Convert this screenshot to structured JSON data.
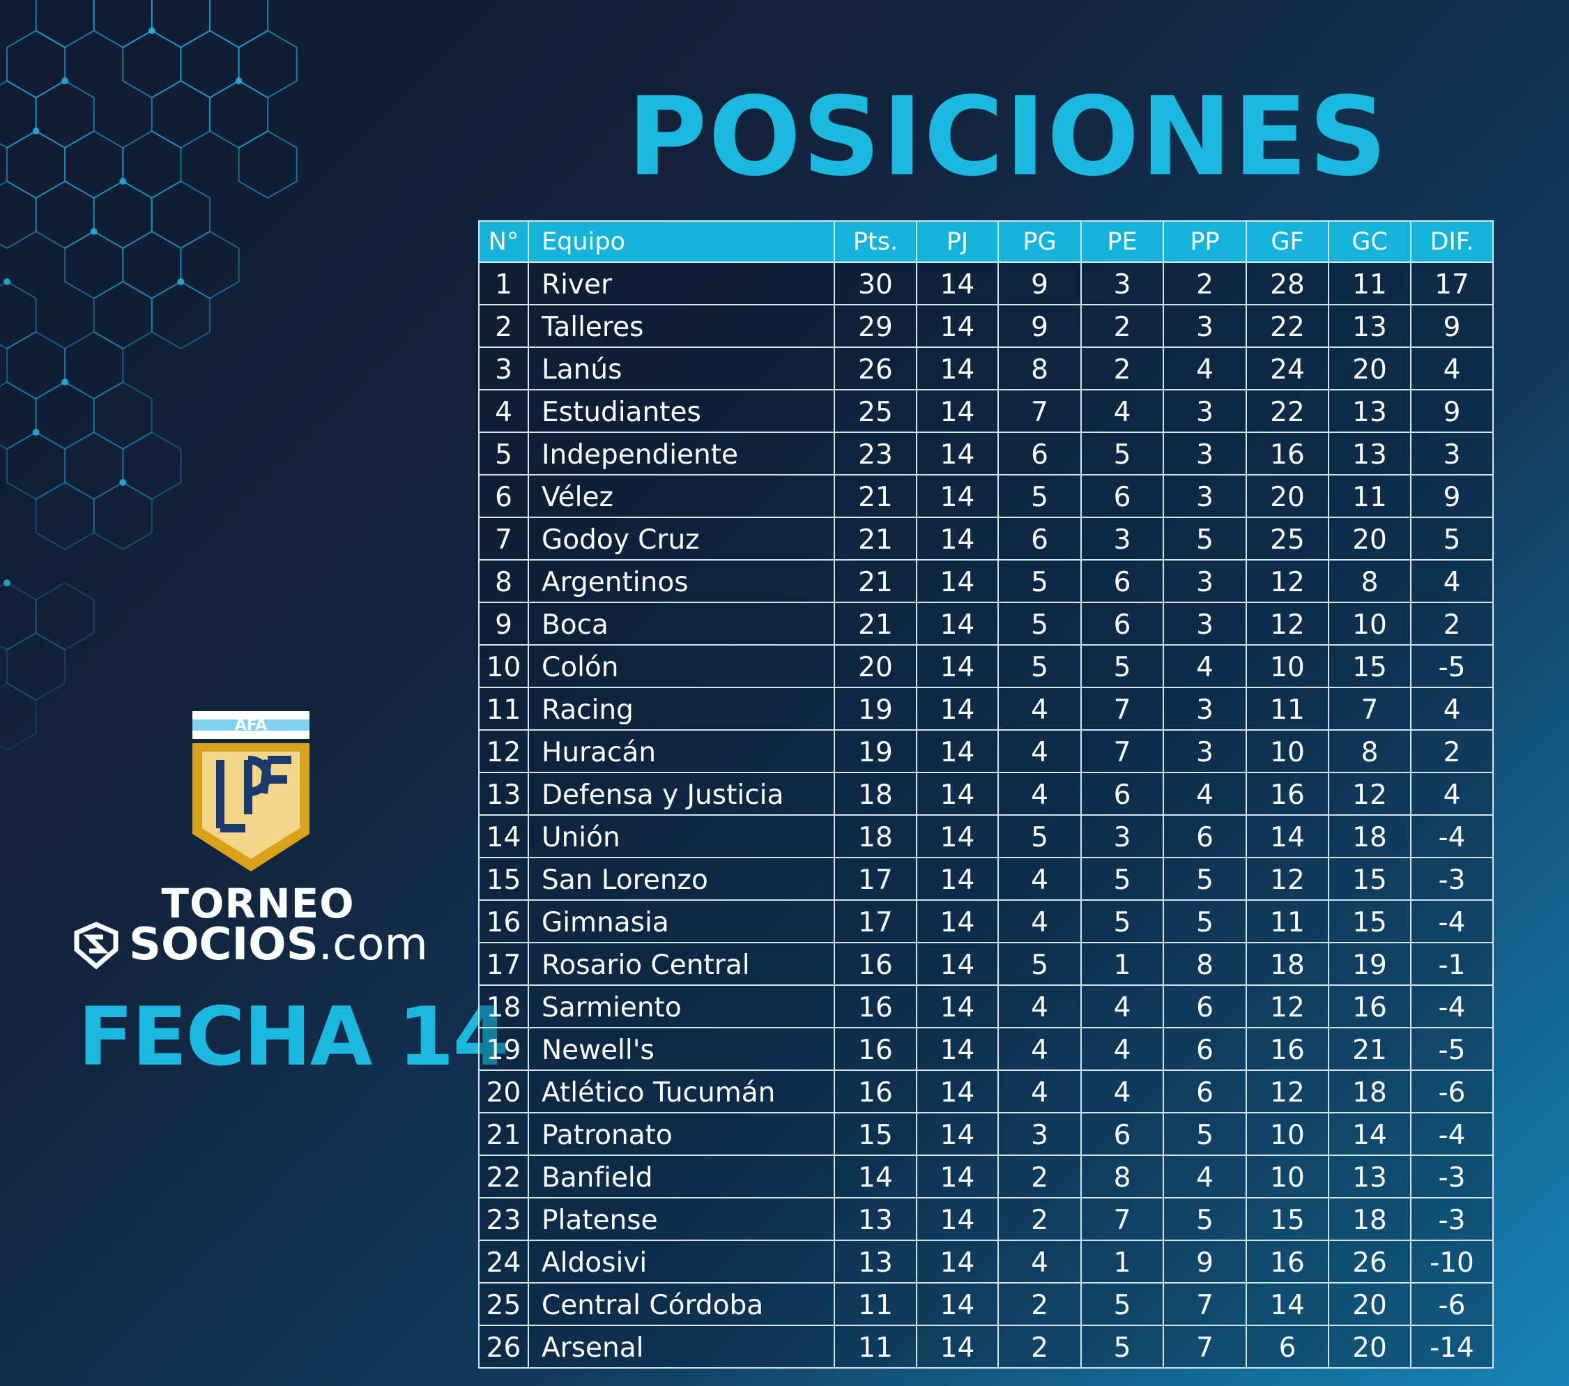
{
  "header": {
    "title": "POSICIONES"
  },
  "branding": {
    "logo_badge": "AFA",
    "tournament": "TORNEO",
    "sponsor_bold": "SOCIOS",
    "sponsor_light": ".com",
    "round": "FECHA 14"
  },
  "table": {
    "headers": [
      "N°",
      "Equipo",
      "Pts.",
      "PJ",
      "PG",
      "PE",
      "PP",
      "GF",
      "GC",
      "DIF."
    ],
    "rows": [
      [
        1,
        "River",
        30,
        14,
        9,
        3,
        2,
        28,
        11,
        17
      ],
      [
        2,
        "Talleres",
        29,
        14,
        9,
        2,
        3,
        22,
        13,
        9
      ],
      [
        3,
        "Lanús",
        26,
        14,
        8,
        2,
        4,
        24,
        20,
        4
      ],
      [
        4,
        "Estudiantes",
        25,
        14,
        7,
        4,
        3,
        22,
        13,
        9
      ],
      [
        5,
        "Independiente",
        23,
        14,
        6,
        5,
        3,
        16,
        13,
        3
      ],
      [
        6,
        "Vélez",
        21,
        14,
        5,
        6,
        3,
        20,
        11,
        9
      ],
      [
        7,
        "Godoy Cruz",
        21,
        14,
        6,
        3,
        5,
        25,
        20,
        5
      ],
      [
        8,
        "Argentinos",
        21,
        14,
        5,
        6,
        3,
        12,
        8,
        4
      ],
      [
        9,
        "Boca",
        21,
        14,
        5,
        6,
        3,
        12,
        10,
        2
      ],
      [
        10,
        "Colón",
        20,
        14,
        5,
        5,
        4,
        10,
        15,
        -5
      ],
      [
        11,
        "Racing",
        19,
        14,
        4,
        7,
        3,
        11,
        7,
        4
      ],
      [
        12,
        "Huracán",
        19,
        14,
        4,
        7,
        3,
        10,
        8,
        2
      ],
      [
        13,
        "Defensa y Justicia",
        18,
        14,
        4,
        6,
        4,
        16,
        12,
        4
      ],
      [
        14,
        "Unión",
        18,
        14,
        5,
        3,
        6,
        14,
        18,
        -4
      ],
      [
        15,
        "San Lorenzo",
        17,
        14,
        4,
        5,
        5,
        12,
        15,
        -3
      ],
      [
        16,
        "Gimnasia",
        17,
        14,
        4,
        5,
        5,
        11,
        15,
        -4
      ],
      [
        17,
        "Rosario Central",
        16,
        14,
        5,
        1,
        8,
        18,
        19,
        -1
      ],
      [
        18,
        "Sarmiento",
        16,
        14,
        4,
        4,
        6,
        12,
        16,
        -4
      ],
      [
        19,
        "Newell's",
        16,
        14,
        4,
        4,
        6,
        16,
        21,
        -5
      ],
      [
        20,
        "Atlético Tucumán",
        16,
        14,
        4,
        4,
        6,
        12,
        18,
        -6
      ],
      [
        21,
        "Patronato",
        15,
        14,
        3,
        6,
        5,
        10,
        14,
        -4
      ],
      [
        22,
        "Banfield",
        14,
        14,
        2,
        8,
        4,
        10,
        13,
        -3
      ],
      [
        23,
        "Platense",
        13,
        14,
        2,
        7,
        5,
        15,
        18,
        -3
      ],
      [
        24,
        "Aldosivi",
        13,
        14,
        4,
        1,
        9,
        16,
        26,
        -10
      ],
      [
        25,
        "Central Córdoba",
        11,
        14,
        2,
        5,
        7,
        14,
        20,
        -6
      ],
      [
        26,
        "Arsenal",
        11,
        14,
        2,
        5,
        7,
        6,
        20,
        -14
      ]
    ]
  }
}
